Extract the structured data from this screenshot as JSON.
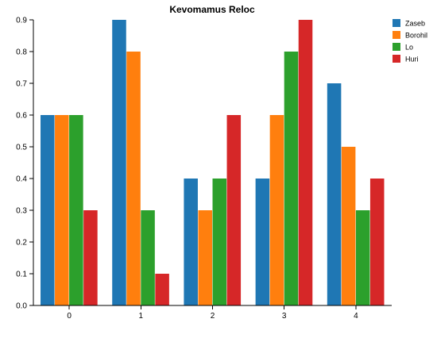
{
  "chart_data": {
    "type": "bar",
    "title": "Kevomamus Reloc",
    "xlabel": "",
    "ylabel": "",
    "categories": [
      "0",
      "1",
      "2",
      "3",
      "4"
    ],
    "ylim": [
      0,
      0.9
    ],
    "yticks": [
      "0.0",
      "0.1",
      "0.2",
      "0.3",
      "0.4",
      "0.5",
      "0.6",
      "0.7",
      "0.8",
      "0.9"
    ],
    "grid": false,
    "legend_position": "top-right",
    "series": [
      {
        "name": "Zaseb",
        "color": "#1f77b4",
        "values": [
          0.6,
          0.9,
          0.4,
          0.4,
          0.7
        ]
      },
      {
        "name": "Borohil",
        "color": "#ff7f0e",
        "values": [
          0.6,
          0.8,
          0.3,
          0.6,
          0.5
        ]
      },
      {
        "name": "Lo",
        "color": "#2ca02c",
        "values": [
          0.6,
          0.3,
          0.4,
          0.8,
          0.3
        ]
      },
      {
        "name": "Huri",
        "color": "#d62728",
        "values": [
          0.3,
          0.1,
          0.6,
          0.9,
          0.4
        ]
      }
    ]
  }
}
